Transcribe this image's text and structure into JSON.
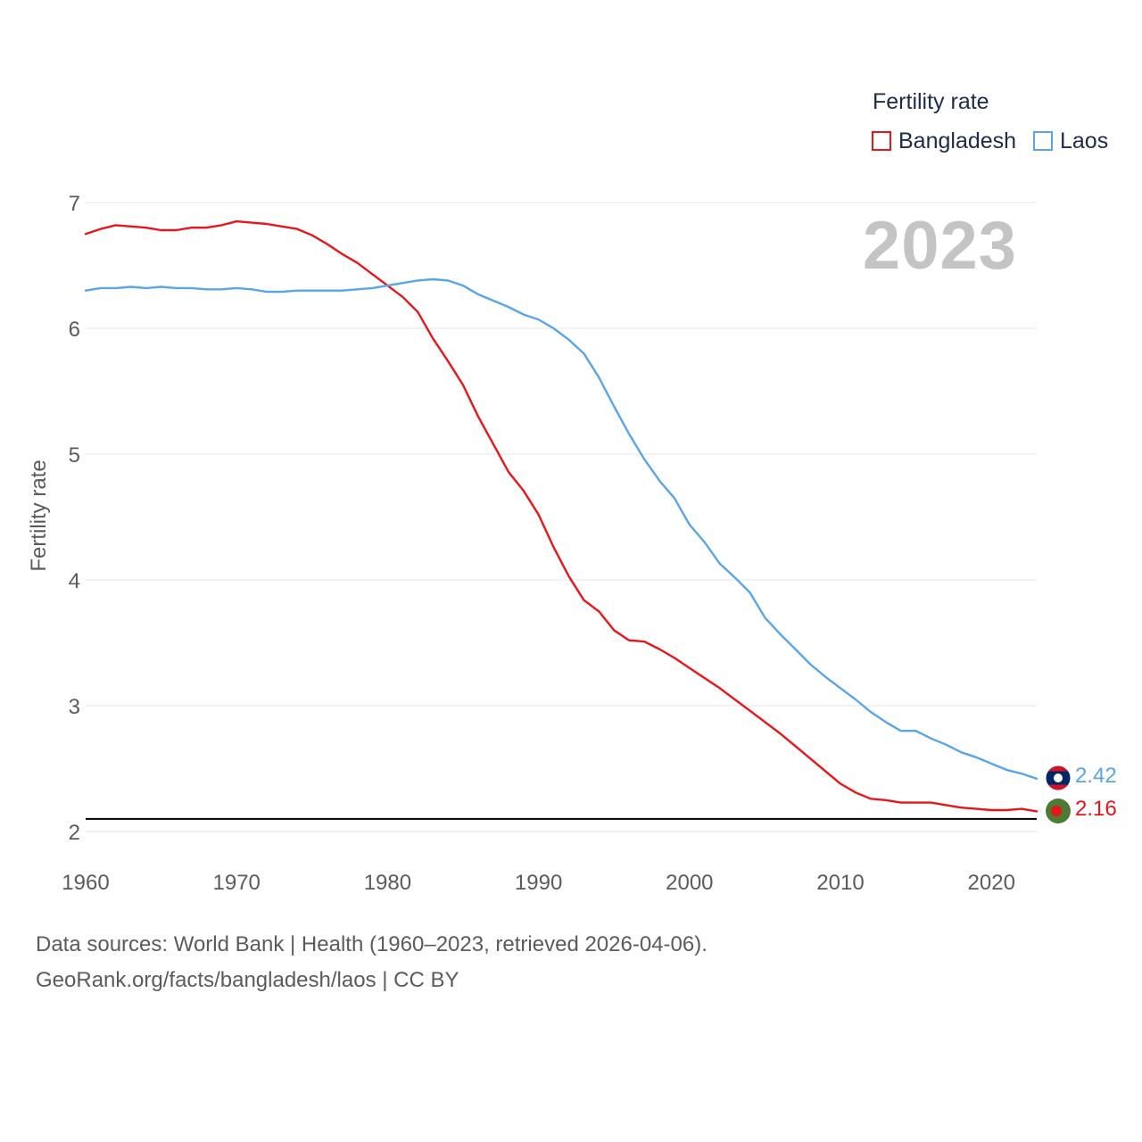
{
  "legend": {
    "title": "Fertility rate",
    "items": [
      {
        "name": "Bangladesh",
        "color": "#e8151b"
      },
      {
        "name": "Laos",
        "color": "#5aa5e6"
      }
    ]
  },
  "year_overlay": "2023",
  "footer": {
    "line1": "Data sources: World Bank | Health (1960–2023, retrieved 2026-04-06).",
    "line2": "GeoRank.org/facts/bangladesh/laos | CC BY"
  },
  "end_labels": {
    "laos": "2.42",
    "bangladesh": "2.16"
  },
  "chart_data": {
    "type": "line",
    "title": "",
    "xlabel": "",
    "ylabel": "Fertility rate",
    "xlim": [
      1960,
      2023
    ],
    "ylim": [
      2,
      7
    ],
    "xticks": [
      1960,
      1970,
      1980,
      1990,
      2000,
      2010,
      2020
    ],
    "yticks": [
      2,
      3,
      4,
      5,
      6,
      7
    ],
    "reference_line": 2.1,
    "grid": true,
    "x": [
      1960,
      1961,
      1962,
      1963,
      1964,
      1965,
      1966,
      1967,
      1968,
      1969,
      1970,
      1971,
      1972,
      1973,
      1974,
      1975,
      1976,
      1977,
      1978,
      1979,
      1980,
      1981,
      1982,
      1983,
      1984,
      1985,
      1986,
      1987,
      1988,
      1989,
      1990,
      1991,
      1992,
      1993,
      1994,
      1995,
      1996,
      1997,
      1998,
      1999,
      2000,
      2001,
      2002,
      2003,
      2004,
      2005,
      2006,
      2007,
      2008,
      2009,
      2010,
      2011,
      2012,
      2013,
      2014,
      2015,
      2016,
      2017,
      2018,
      2019,
      2020,
      2021,
      2022,
      2023
    ],
    "series": [
      {
        "name": "Bangladesh",
        "color": "#e8151b",
        "values": [
          6.75,
          6.79,
          6.82,
          6.81,
          6.8,
          6.78,
          6.78,
          6.8,
          6.8,
          6.82,
          6.85,
          6.84,
          6.83,
          6.81,
          6.79,
          6.74,
          6.67,
          6.59,
          6.52,
          6.43,
          6.34,
          6.25,
          6.13,
          5.92,
          5.74,
          5.55,
          5.3,
          5.08,
          4.86,
          4.71,
          4.52,
          4.26,
          4.03,
          3.84,
          3.75,
          3.6,
          3.52,
          3.51,
          3.45,
          3.38,
          3.3,
          3.22,
          3.14,
          3.05,
          2.96,
          2.87,
          2.78,
          2.68,
          2.58,
          2.48,
          2.38,
          2.31,
          2.26,
          2.25,
          2.23,
          2.23,
          2.23,
          2.21,
          2.19,
          2.18,
          2.17,
          2.17,
          2.18,
          2.16
        ]
      },
      {
        "name": "Laos",
        "color": "#5aa5e6",
        "values": [
          6.3,
          6.32,
          6.32,
          6.33,
          6.32,
          6.33,
          6.32,
          6.32,
          6.31,
          6.31,
          6.32,
          6.31,
          6.29,
          6.29,
          6.3,
          6.3,
          6.3,
          6.3,
          6.31,
          6.32,
          6.34,
          6.36,
          6.38,
          6.39,
          6.38,
          6.34,
          6.27,
          6.22,
          6.17,
          6.11,
          6.07,
          6.0,
          5.91,
          5.8,
          5.61,
          5.38,
          5.16,
          4.96,
          4.79,
          4.65,
          4.44,
          4.3,
          4.13,
          4.02,
          3.9,
          3.7,
          3.57,
          3.45,
          3.33,
          3.23,
          3.14,
          3.05,
          2.95,
          2.87,
          2.8,
          2.8,
          2.74,
          2.69,
          2.63,
          2.59,
          2.54,
          2.49,
          2.46,
          2.42
        ]
      }
    ]
  }
}
